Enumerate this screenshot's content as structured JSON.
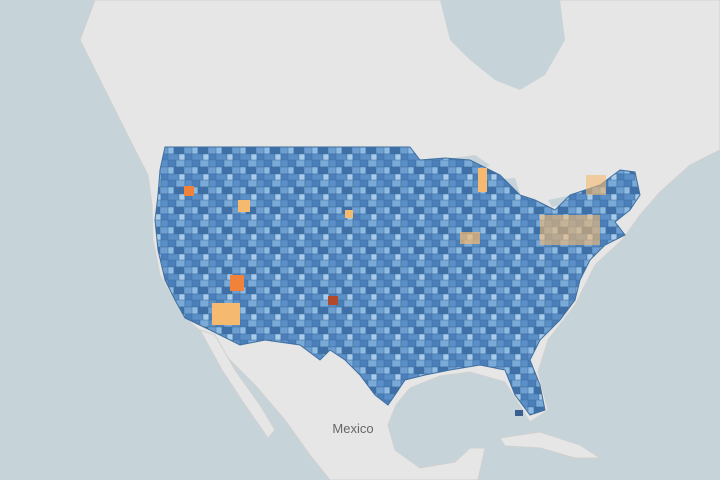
{
  "map": {
    "labels": {
      "mexico": "Mexico"
    }
  }
}
